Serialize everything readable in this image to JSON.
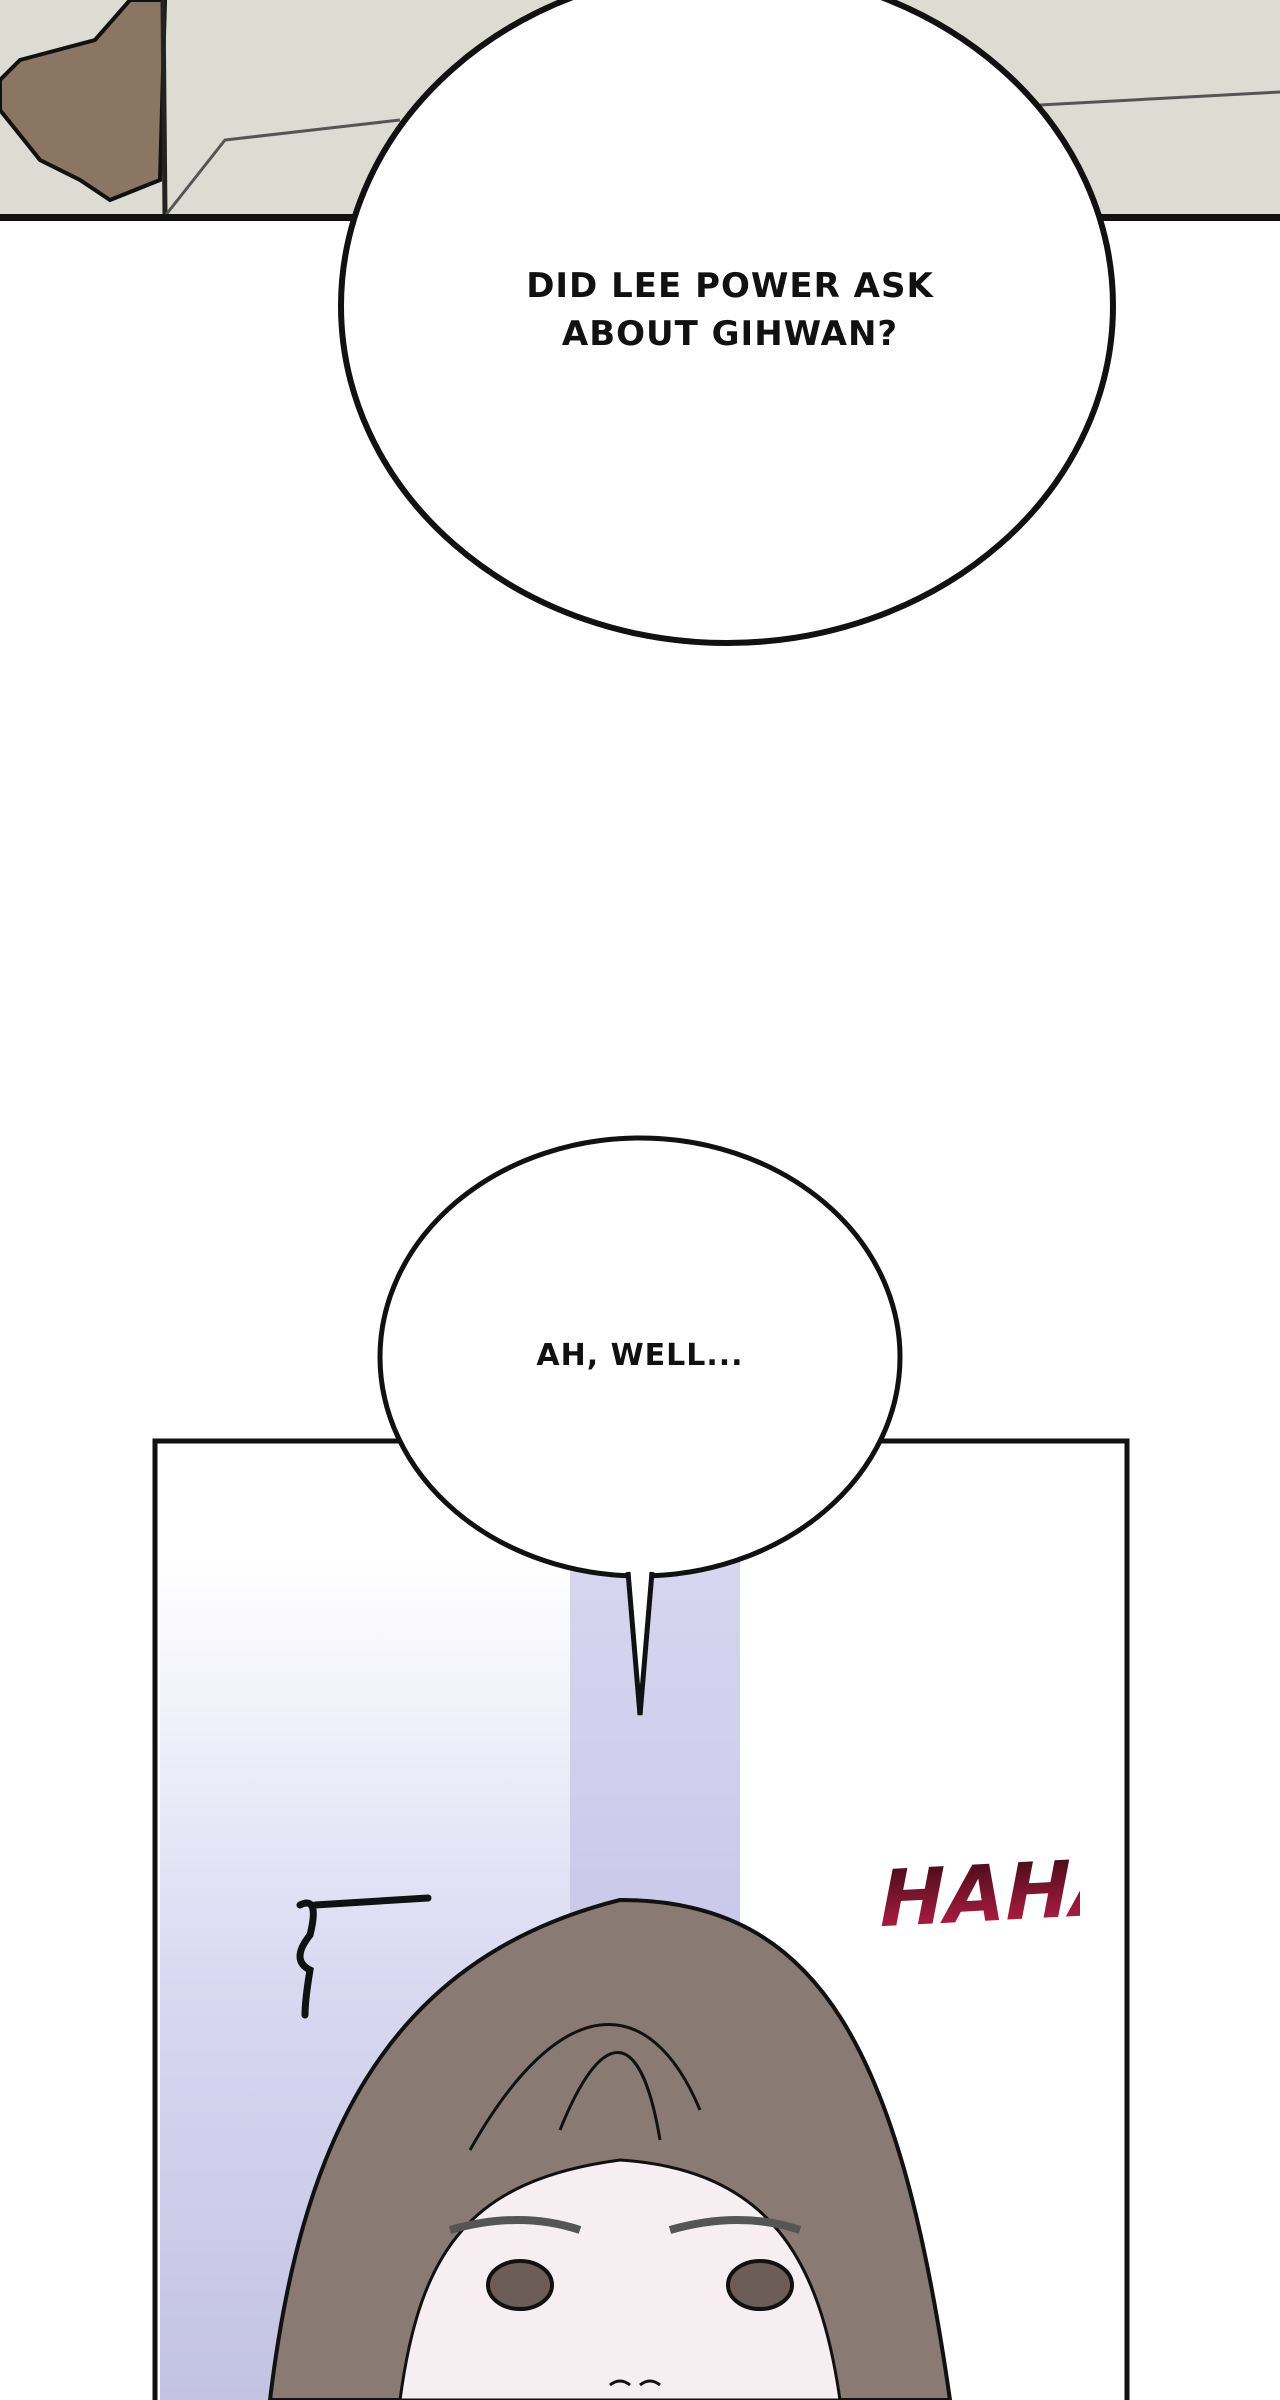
{
  "panels": [
    {
      "bubble": {
        "text_lines": [
          "DID LEE POWER ASK",
          "ABOUT GIHWAN?"
        ]
      }
    },
    {
      "bubble": {
        "text": "AH, WELL..."
      },
      "sfx": "HAHA"
    }
  ],
  "colors": {
    "panel_bg": "#dcdcd2",
    "sfx": "#b81c44",
    "hair": "#8a7a74",
    "glow": "#b9b7e0"
  }
}
